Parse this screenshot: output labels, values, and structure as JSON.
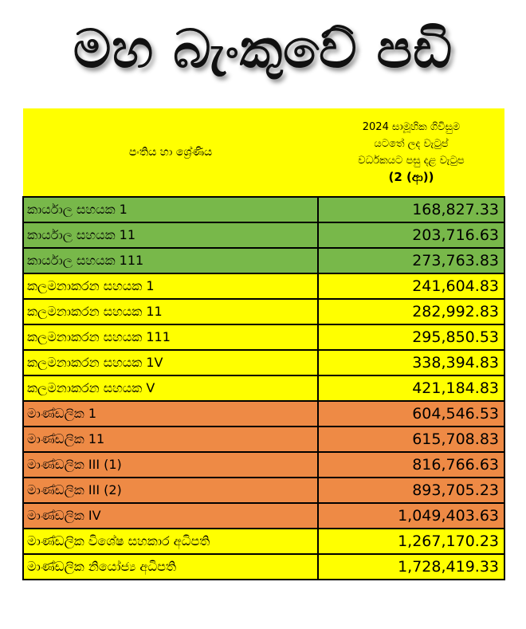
{
  "title": "මහ බැංකුවේ පඩි",
  "table": {
    "header_rank": "පංතිය හා ශ්‍රේණිය",
    "header_salary_lines": [
      "2024 සාමූහික ගිවිසුම",
      "යටතේ ලද වැටුප්",
      "වර්ධකයට පසු දළ වැටුප"
    ],
    "header_salary_note": "(2 (ආ))",
    "colors": {
      "green": "#78b84a",
      "yellow": "#ffff00",
      "orange": "#ee8a45"
    },
    "rows": [
      {
        "rank": "කාර්යාල සහයක 1",
        "salary": "168,827.33",
        "color": "#78b84a"
      },
      {
        "rank": "කාර්යාල සහයක 11",
        "salary": "203,716.63",
        "color": "#78b84a"
      },
      {
        "rank": "කාර්යාල සහයක  111",
        "salary": "273,763.83",
        "color": "#78b84a"
      },
      {
        "rank": "කලමනාකරන සහයක 1",
        "salary": "241,604.83",
        "color": "#ffff00"
      },
      {
        "rank": "කලමනාකරන සහයක 11",
        "salary": "282,992.83",
        "color": "#ffff00"
      },
      {
        "rank": "කලමනාකරන සහයක 111",
        "salary": "295,850.53",
        "color": "#ffff00"
      },
      {
        "rank": "කලමනාකරන සහයක 1V",
        "salary": "338,394.83",
        "color": "#ffff00"
      },
      {
        "rank": "කලමනාකරන සහයක V",
        "salary": "421,184.83",
        "color": "#ffff00"
      },
      {
        "rank": "මාණ්ඩලික  1",
        "salary": "604,546.53",
        "color": "#ee8a45"
      },
      {
        "rank": "මාණ්ඩලික  11",
        "salary": "615,708.83",
        "color": "#ee8a45"
      },
      {
        "rank": "මාණ්ඩලික III (1)",
        "salary": "816,766.63",
        "color": "#ee8a45"
      },
      {
        "rank": "මාණ්ඩලික III (2)",
        "salary": "893,705.23",
        "color": "#ee8a45"
      },
      {
        "rank": "මාණ්ඩලික IV",
        "salary": "1,049,403.63",
        "color": "#ee8a45"
      },
      {
        "rank": "මාණ්ඩලික විශේෂ සහකාර අධිපති",
        "salary": "1,267,170.23",
        "color": "#ffff00"
      },
      {
        "rank": "මාණ්ඩලික නියෝජ්‍ය අධිපති",
        "salary": "1,728,419.33",
        "color": "#ffff00"
      }
    ]
  }
}
